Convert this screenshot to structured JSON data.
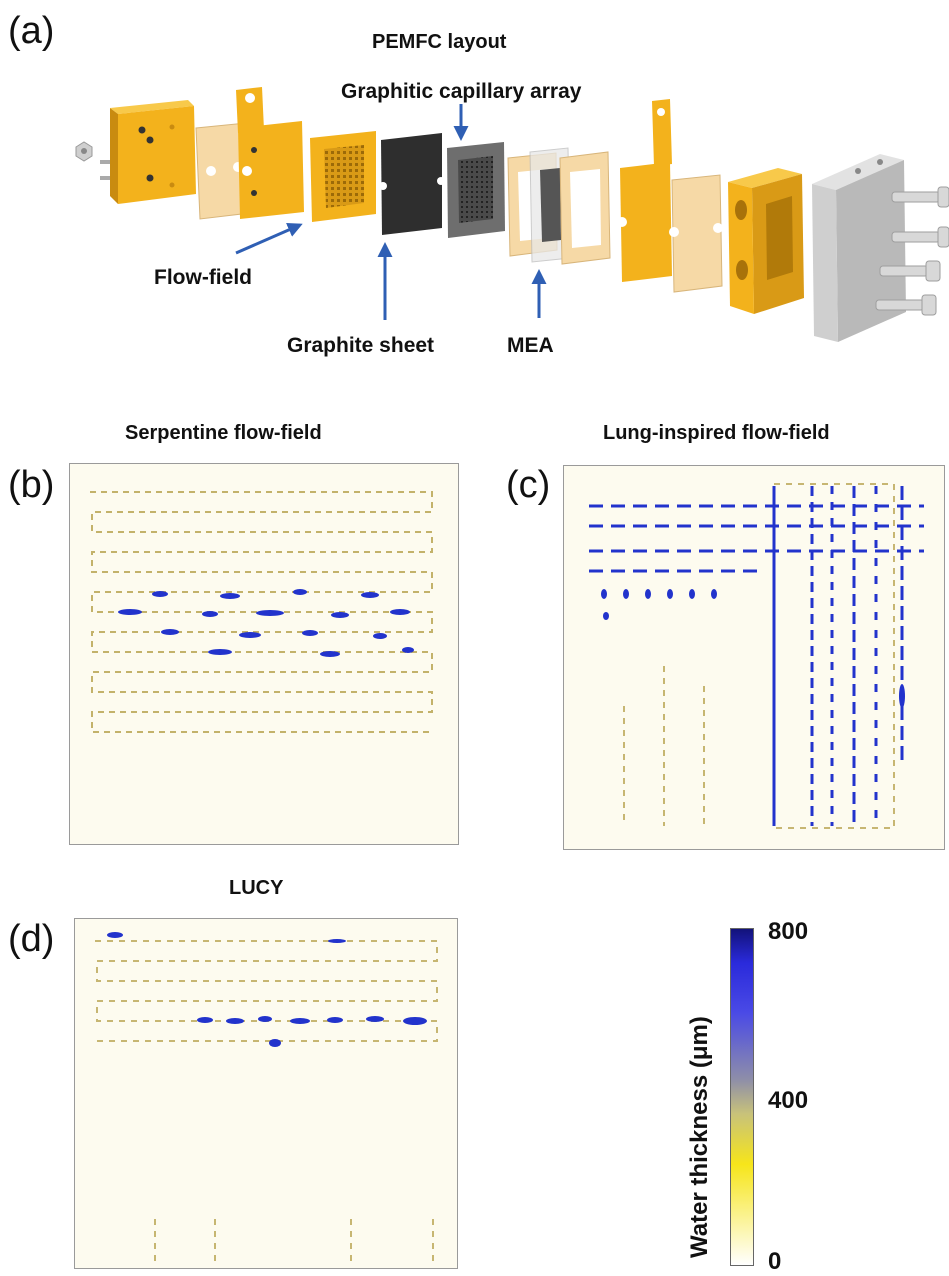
{
  "panel_a": {
    "label": "(a)",
    "title": "PEMFC layout",
    "callouts": {
      "capillary": "Graphitic capillary array",
      "flowfield": "Flow-field",
      "graphite": "Graphite sheet",
      "mea": "MEA"
    }
  },
  "panel_b": {
    "label": "(b)",
    "title": "Serpentine flow-field"
  },
  "panel_c": {
    "label": "(c)",
    "title": "Lung-inspired flow-field"
  },
  "panel_d": {
    "label": "(d)",
    "title": "LUCY"
  },
  "colorbar": {
    "title": "Water thickness (μm)",
    "ticks": [
      "800",
      "400",
      "0"
    ],
    "colors": {
      "low": "#ffffff",
      "mid_low": "#f6e51a",
      "mid": "#8f8fa8",
      "high": "#2a2adb",
      "max": "#12127a"
    }
  },
  "colors": {
    "yellow_part": "#f3b21c",
    "tan_part": "#f6d9a6",
    "dark_part": "#2e2e2e",
    "grey_part": "#6e6e6e",
    "steel": "#b9b9b9",
    "arrow": "#2f5fb4",
    "water": "#2233cc",
    "trace": "#b9a552"
  }
}
